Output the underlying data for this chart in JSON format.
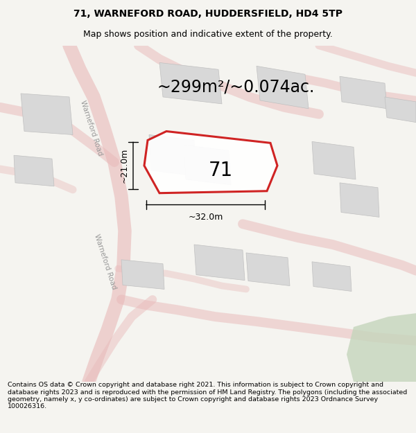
{
  "title": "71, WARNEFORD ROAD, HUDDERSFIELD, HD4 5TP",
  "subtitle": "Map shows position and indicative extent of the property.",
  "area_text": "~299m²/~0.074ac.",
  "label_71": "71",
  "dim_width": "~32.0m",
  "dim_height": "~21.0m",
  "footer": "Contains OS data © Crown copyright and database right 2021. This information is subject to Crown copyright and database rights 2023 and is reproduced with the permission of HM Land Registry. The polygons (including the associated geometry, namely x, y co-ordinates) are subject to Crown copyright and database rights 2023 Ordnance Survey 100026316.",
  "bg_color": "#f5f4f0",
  "map_bg": "#f5f4f0",
  "road_color": "#e8b8b8",
  "building_color": "#d8d8d8",
  "building_edge": "#c0c0c0",
  "highlight_color": "#cc1111",
  "green_color": "#c5d5bc",
  "road_label": "Warneford Road",
  "title_fontsize": 10,
  "subtitle_fontsize": 9,
  "area_fontsize": 17,
  "label_fontsize": 20,
  "dim_fontsize": 9,
  "footer_fontsize": 6.8,
  "road_label_fontsize": 7.5
}
